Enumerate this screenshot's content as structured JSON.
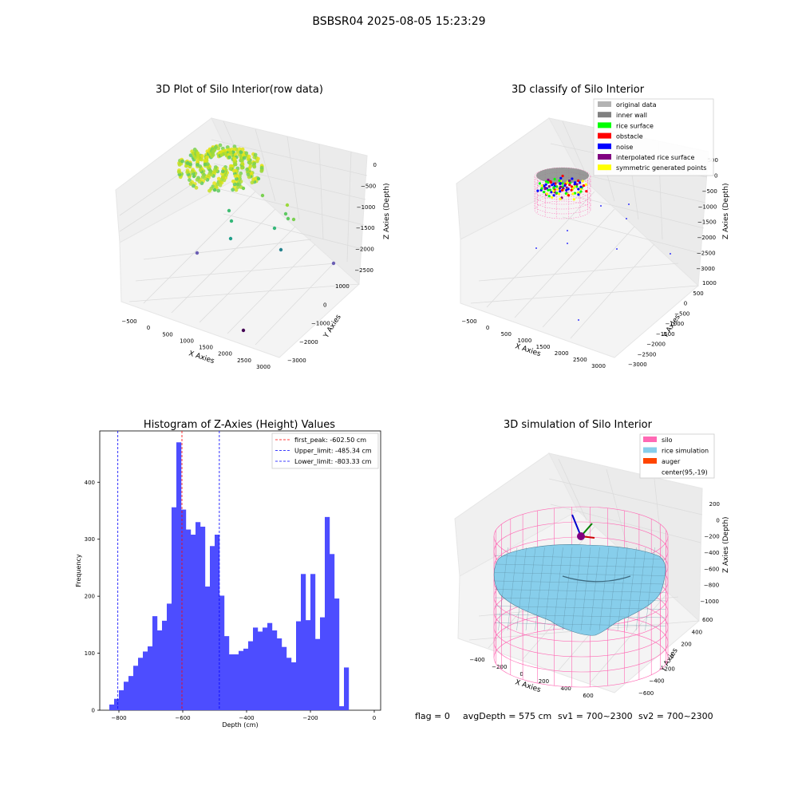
{
  "suptitle": "BSBSR04 2025-08-05 15:23:29",
  "panel1": {
    "title": "3D Plot of Silo Interior(row data)",
    "xlabel": "X Axies",
    "ylabel": "Y Axies",
    "zlabel": "Z Axies (Depth)",
    "xticks": [
      "−500",
      "0",
      "500",
      "1000",
      "1500",
      "2000",
      "2500",
      "3000"
    ],
    "yticks": [
      "1000",
      "0",
      "−1000",
      "−2000",
      "−3000"
    ],
    "zticks": [
      "0",
      "−500",
      "−1000",
      "−1500",
      "−2000",
      "−2500"
    ]
  },
  "panel2": {
    "title": "3D classify of Silo Interior",
    "xlabel": "X Axies",
    "ylabel": "Y Axies",
    "zlabel": "Z Axies (Depth)",
    "xticks": [
      "−500",
      "0",
      "500",
      "1000",
      "1500",
      "2000",
      "2500",
      "3000"
    ],
    "yticks": [
      "1000",
      "500",
      "0",
      "−500",
      "−1000",
      "−1500",
      "−2000",
      "−2500",
      "−3000"
    ],
    "zticks": [
      "500",
      "0",
      "−500",
      "−1000",
      "−1500",
      "−2000",
      "−2500",
      "−3000"
    ],
    "legend": [
      {
        "label": "original data",
        "color": "#b3b3b3"
      },
      {
        "label": "inner wall",
        "color": "#808080"
      },
      {
        "label": "rice surface",
        "color": "#00ff00"
      },
      {
        "label": "obstacle",
        "color": "#ff0000"
      },
      {
        "label": "noise",
        "color": "#0000ff"
      },
      {
        "label": "interpolated rice surface",
        "color": "#800080"
      },
      {
        "label": "symmetric generated points",
        "color": "#ffff00"
      }
    ]
  },
  "panel4": {
    "title": "3D simulation of Silo Interior",
    "xlabel": "X Axies",
    "ylabel": "Y Axies",
    "zlabel": "Z Axies (Depth)",
    "xticks": [
      "−400",
      "−200",
      "0",
      "200",
      "400",
      "600"
    ],
    "yticks": [
      "600",
      "400",
      "200",
      "0",
      "−200",
      "−400",
      "−600"
    ],
    "zticks": [
      "200",
      "0",
      "−200",
      "−400",
      "−600",
      "−800",
      "−1000"
    ],
    "legend": [
      {
        "label": "silo",
        "color": "#ff69b4"
      },
      {
        "label": "rice simulation",
        "color": "#87ceeb"
      },
      {
        "label": "auger",
        "color": "#ff4500"
      },
      {
        "label": "center(95,-19)",
        "color": ""
      }
    ]
  },
  "footer": {
    "flag": "flag = 0",
    "avg": "avgDepth = 575 cm",
    "sv1": "sv1 = 700~2300",
    "sv2": "sv2 = 700~2300"
  },
  "colors": {
    "hist_bar": "#4d4dff",
    "peak_line": "#ff0000",
    "limit_line": "#0000ff",
    "silo": "#ff69b4",
    "rice": "#87ceeb"
  },
  "chart_data": {
    "type": "bar",
    "title": "Histogram of Z-Axies (Height) Values",
    "xlabel": "Depth (cm)",
    "ylabel": "Frequency",
    "xlim": [
      -860,
      20
    ],
    "ylim": [
      0,
      490
    ],
    "xticks": [
      -800,
      -600,
      -400,
      -200,
      0
    ],
    "yticks": [
      0,
      100,
      200,
      300,
      400
    ],
    "bin_start": -830,
    "bin_width": 15,
    "values": [
      10,
      20,
      35,
      50,
      60,
      78,
      92,
      103,
      112,
      165,
      140,
      157,
      187,
      356,
      470,
      352,
      317,
      308,
      330,
      322,
      217,
      288,
      308,
      201,
      130,
      98,
      98,
      104,
      108,
      121,
      145,
      138,
      145,
      153,
      140,
      126,
      111,
      92,
      84,
      156,
      239,
      158,
      239,
      125,
      163,
      339,
      274,
      196,
      7,
      75
    ],
    "lines": [
      {
        "label": "first_peak: -602.50 cm",
        "x": -602.5,
        "color": "#ff0000"
      },
      {
        "label": "Upper_limit: -485.34 cm",
        "x": -485.34,
        "color": "#0000ff"
      },
      {
        "label": "Lower_limit: -803.33 cm",
        "x": -803.33,
        "color": "#0000ff"
      }
    ],
    "legend_position": "top-right"
  }
}
